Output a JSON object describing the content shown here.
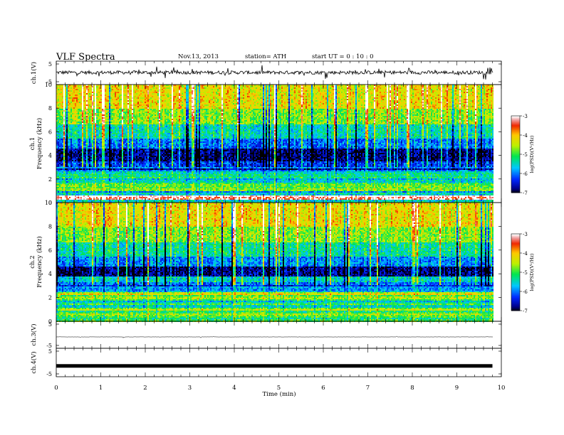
{
  "header": {
    "title": "VLF  Spectra",
    "date": "Nov.13, 2013",
    "station": "station= ATH",
    "start_time": "start  UT  =   0  : 10 : 0"
  },
  "chart_data": [
    {
      "type": "line",
      "panel": "ch1-waveform",
      "ylabel": "ch.1(V)",
      "ylim": [
        -5,
        5
      ],
      "yticks": [
        "5",
        "-5"
      ],
      "xlim": [
        0,
        10
      ],
      "baseline_v": 0.2,
      "noise_amplitude_v": 1.0,
      "spike_amplitude_v": 3.5
    },
    {
      "type": "heatmap",
      "panel": "ch1-spectrogram",
      "ylabel": "Frequency  (kHz)",
      "channel_label": "ch.1",
      "ylim": [
        0,
        10
      ],
      "yticks": [
        "0",
        "2",
        "4",
        "6",
        "8",
        "10"
      ],
      "xlim": [
        0,
        10
      ],
      "data_extent_min": 9.8,
      "colorbar": {
        "label": "log(PSD)(V²/Hz)",
        "range": [
          -7,
          -3
        ],
        "ticks": [
          "-3",
          "-4",
          "-5",
          "-6",
          "-7"
        ]
      },
      "bands": [
        {
          "f": [
            0,
            0.3
          ],
          "level": -5.3
        },
        {
          "f": [
            0.3,
            0.6
          ],
          "level": -3.2
        },
        {
          "f": [
            0.6,
            1.0
          ],
          "level": -5.8
        },
        {
          "f": [
            1.0,
            1.6
          ],
          "level": -5.0
        },
        {
          "f": [
            1.6,
            2.2
          ],
          "level": -5.4
        },
        {
          "f": [
            2.2,
            2.8
          ],
          "level": -5.6
        },
        {
          "f": [
            2.8,
            3.5
          ],
          "level": -6.3
        },
        {
          "f": [
            3.5,
            4.6
          ],
          "level": -6.8
        },
        {
          "f": [
            4.6,
            5.4
          ],
          "level": -6.0
        },
        {
          "f": [
            5.4,
            6.6
          ],
          "level": -5.4
        },
        {
          "f": [
            6.6,
            8.0
          ],
          "level": -4.7
        },
        {
          "f": [
            8.0,
            10.0
          ],
          "level": -4.2
        }
      ]
    },
    {
      "type": "heatmap",
      "panel": "ch2-spectrogram",
      "ylabel": "Frequency  (kHz)",
      "channel_label": "ch.2",
      "ylim": [
        0,
        10
      ],
      "yticks": [
        "0",
        "2",
        "4",
        "6",
        "8",
        "10"
      ],
      "xlim": [
        0,
        10
      ],
      "data_extent_min": 9.8,
      "colorbar": {
        "label": "log(PSD)(V²/Hz)",
        "range": [
          -7,
          -3
        ],
        "ticks": [
          "-3",
          "-4",
          "-5",
          "-6",
          "-7"
        ]
      },
      "bands": [
        {
          "f": [
            0,
            0.4
          ],
          "level": -5.0
        },
        {
          "f": [
            0.4,
            1.0
          ],
          "level": -4.8
        },
        {
          "f": [
            1.0,
            1.8
          ],
          "level": -5.2
        },
        {
          "f": [
            1.8,
            2.4
          ],
          "level": -4.5
        },
        {
          "f": [
            2.4,
            3.3
          ],
          "level": -6.0
        },
        {
          "f": [
            3.3,
            3.8
          ],
          "level": -5.5
        },
        {
          "f": [
            3.8,
            4.6
          ],
          "level": -6.8
        },
        {
          "f": [
            4.6,
            5.4
          ],
          "level": -5.9
        },
        {
          "f": [
            5.4,
            6.6
          ],
          "level": -5.3
        },
        {
          "f": [
            6.6,
            8.0
          ],
          "level": -4.7
        },
        {
          "f": [
            8.0,
            10.0
          ],
          "level": -4.2
        }
      ]
    },
    {
      "type": "line",
      "panel": "ch3-waveform",
      "ylabel": "ch.3(V)",
      "ylim": [
        -5,
        5
      ],
      "yticks": [
        "5",
        "-5"
      ],
      "xlim": [
        0,
        10
      ],
      "baseline_v": -1.0,
      "noise_amplitude_v": 0.1,
      "spike_amplitude_v": 0.5
    },
    {
      "type": "line",
      "panel": "ch4-waveform",
      "ylabel": "ch.4(V)",
      "ylim": [
        -5,
        5
      ],
      "yticks": [
        "5",
        "-5"
      ],
      "xlim": [
        0,
        10
      ],
      "xlabel": "Time  (min)",
      "xticks": [
        "0",
        "1",
        "2",
        "3",
        "4",
        "5",
        "6",
        "7",
        "8",
        "9",
        "10"
      ],
      "baseline_v": -1.5,
      "noise_amplitude_v": 0.3,
      "spike_amplitude_v": 0.3
    }
  ]
}
